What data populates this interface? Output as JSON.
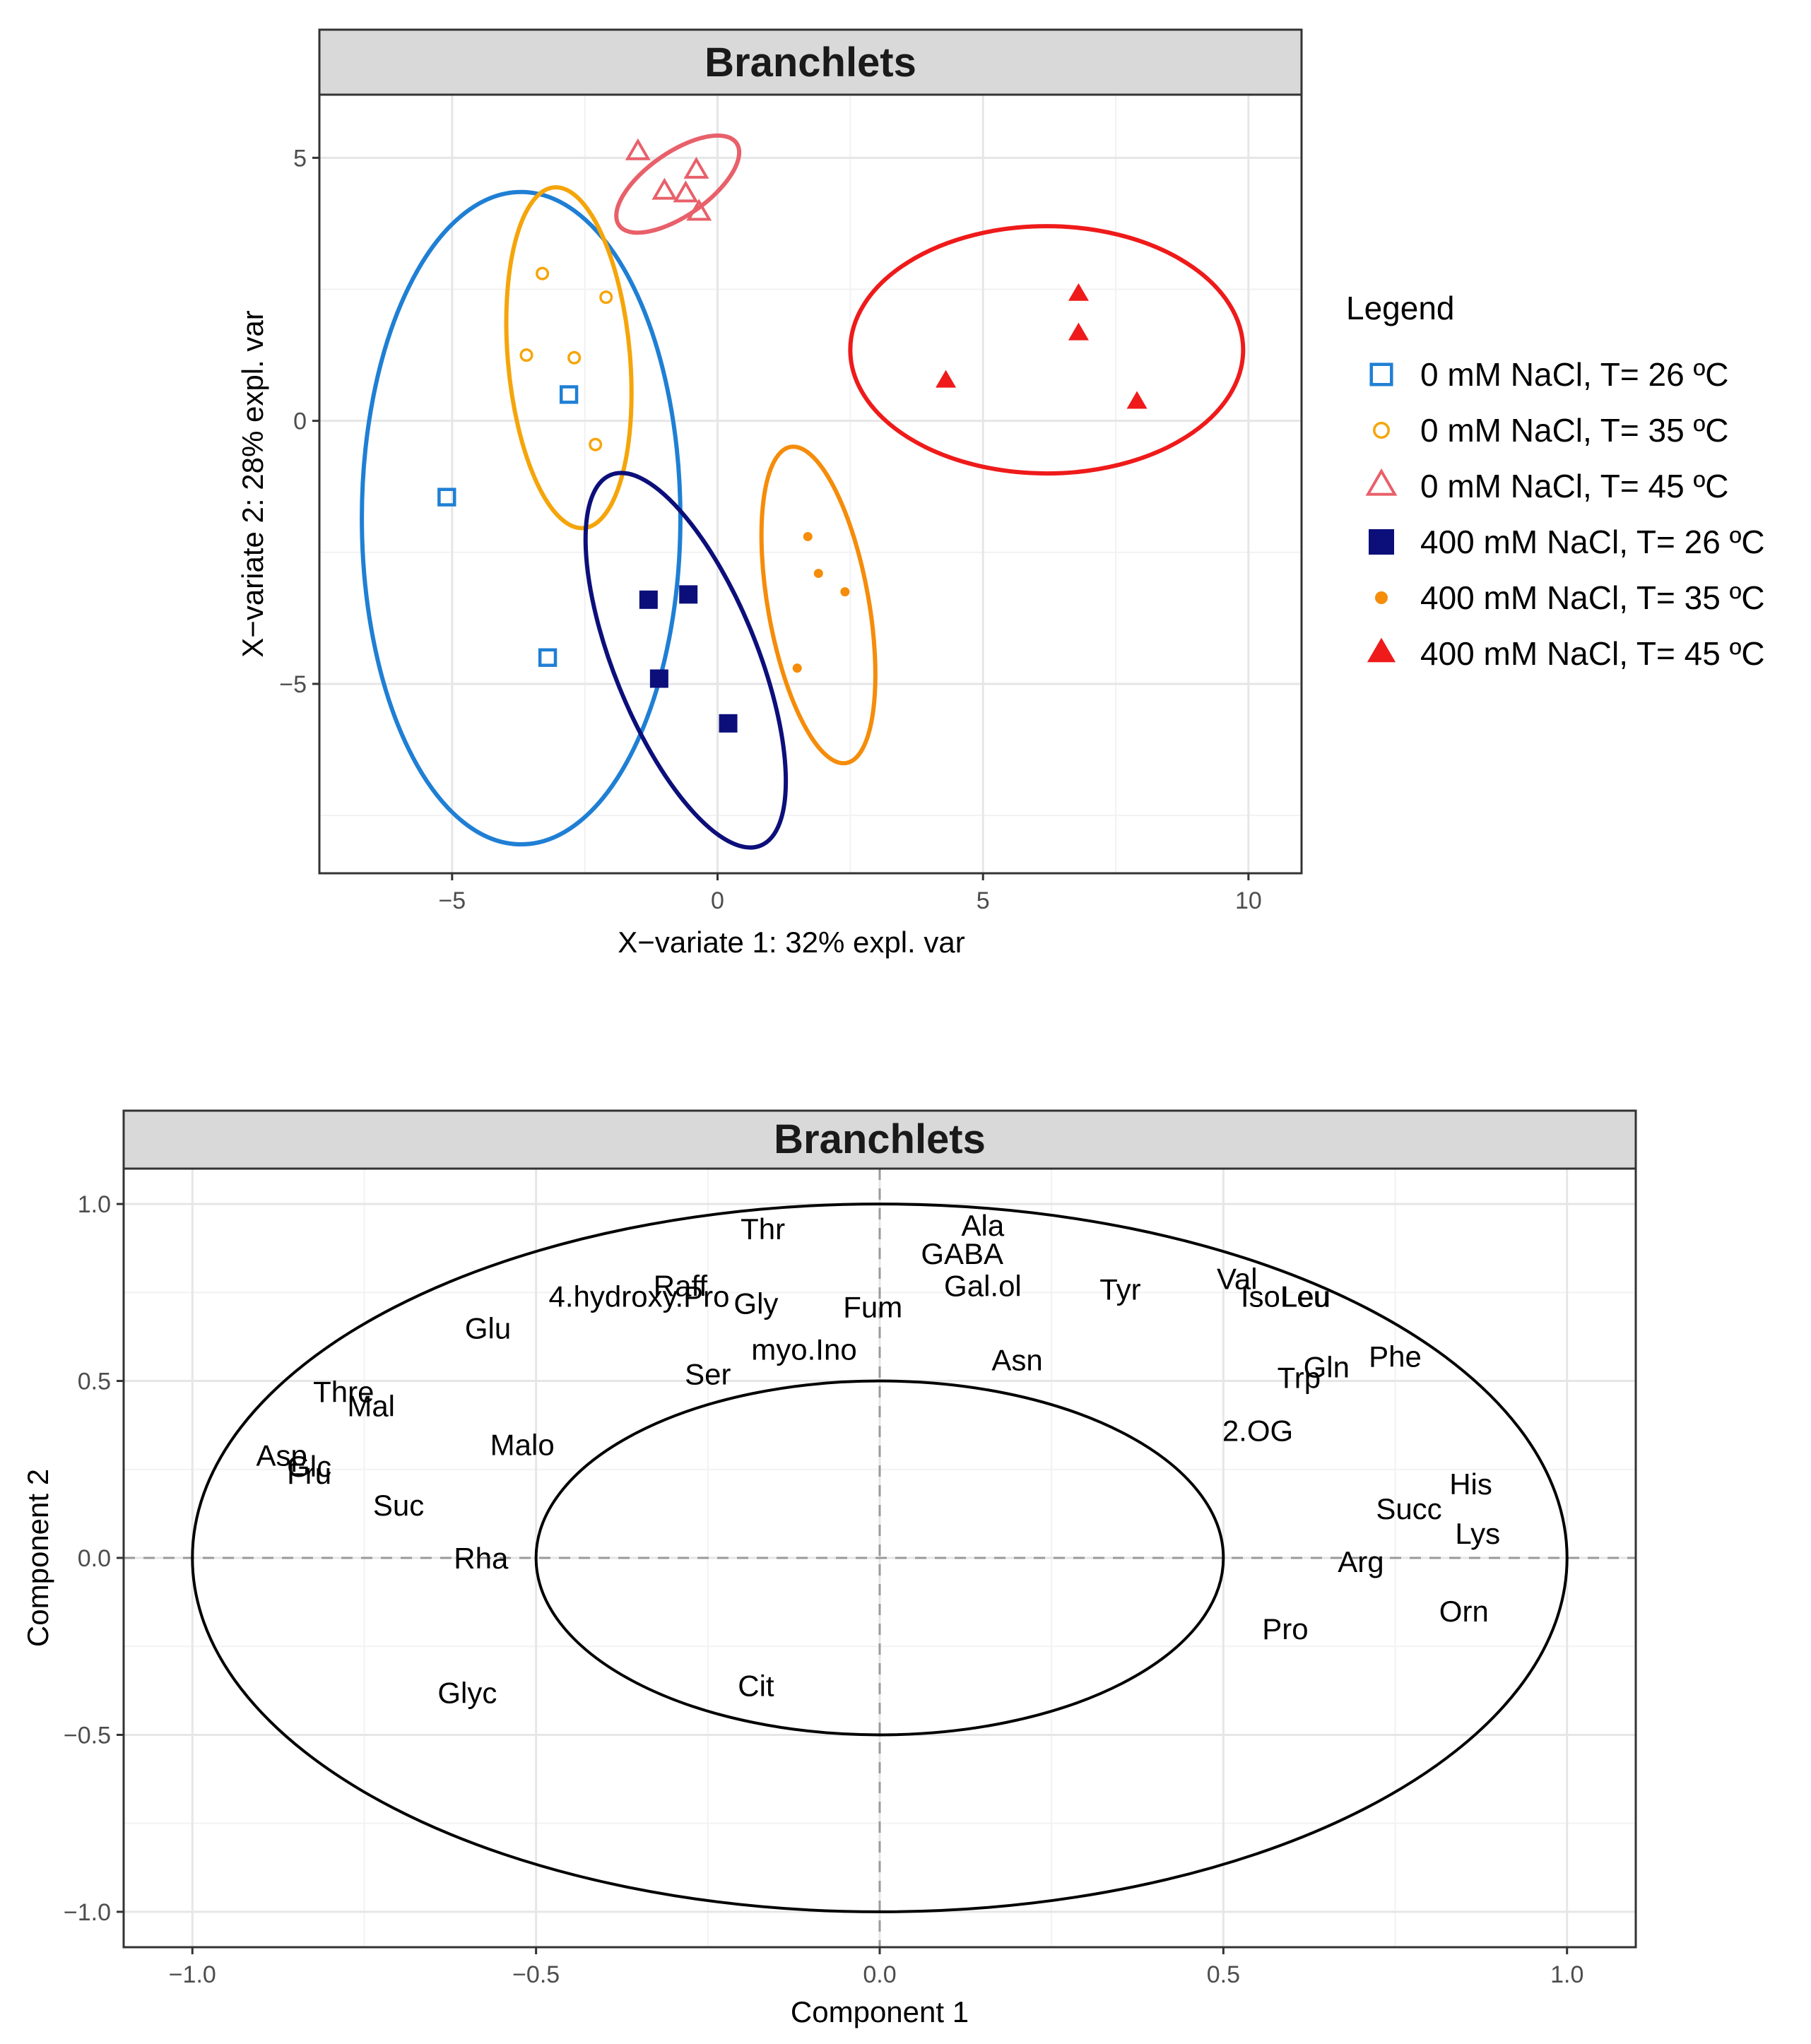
{
  "chart_data": [
    {
      "type": "scatter",
      "title": "Branchlets",
      "xlabel": "X−variate 1: 32% expl. var",
      "ylabel": "X−variate 2: 28% expl. var",
      "xlim": [
        -7.5,
        11
      ],
      "ylim": [
        -8.6,
        6.2
      ],
      "xticks": [
        -5,
        0,
        5,
        10
      ],
      "xtick_labels": [
        "−5",
        "0",
        "5",
        "10"
      ],
      "yticks": [
        5,
        0,
        -5
      ],
      "ytick_labels": [
        "5",
        "0",
        "−5"
      ],
      "grid": true,
      "legend_position": "right",
      "legend": {
        "title": "Legend",
        "items": [
          "0 mM NaCl, T= 26 ºC",
          "0 mM NaCl, T= 35 ºC",
          "0 mM NaCl, T= 45 ºC",
          "400 mM NaCl, T= 26 ºC",
          "400 mM NaCl, T= 35 ºC",
          "400 mM NaCl, T= 45 ºC"
        ]
      },
      "series": [
        {
          "name": "0 mM NaCl, T= 26 ºC",
          "marker": "square-open",
          "color": "#1f7fd4",
          "points": [
            [
              -2.8,
              0.5
            ],
            [
              -5.1,
              -1.45
            ],
            [
              -3.2,
              -4.5
            ]
          ],
          "ellipse": {
            "center": [
              -3.7,
              -1.85
            ],
            "rx": 3.0,
            "ry": 6.2,
            "angle_deg": 0
          }
        },
        {
          "name": "0 mM NaCl, T= 35 ºC",
          "marker": "circle-open",
          "color": "#f5a50a",
          "points": [
            [
              -3.3,
              2.8
            ],
            [
              -2.1,
              2.35
            ],
            [
              -3.6,
              1.25
            ],
            [
              -2.7,
              1.2
            ],
            [
              -2.3,
              -0.45
            ]
          ],
          "ellipse": {
            "center": [
              -2.8,
              1.2
            ],
            "rx": 1.15,
            "ry": 3.25,
            "angle_deg": -5
          }
        },
        {
          "name": "0 mM NaCl, T= 45 ºC",
          "marker": "triangle-open",
          "color": "#e8606a",
          "points": [
            [
              -1.5,
              5.1
            ],
            [
              -1.0,
              4.35
            ],
            [
              -0.6,
              4.3
            ],
            [
              -0.4,
              4.75
            ],
            [
              -0.35,
              3.95
            ]
          ],
          "ellipse": {
            "center": [
              -0.75,
              4.5
            ],
            "rx": 1.35,
            "ry": 0.6,
            "angle_deg": -35
          }
        },
        {
          "name": "400 mM NaCl, T= 26 ºC",
          "marker": "square-filled",
          "color": "#0c0f7a",
          "points": [
            [
              -1.3,
              -3.4
            ],
            [
              -0.55,
              -3.3
            ],
            [
              -1.1,
              -4.9
            ],
            [
              0.2,
              -5.75
            ]
          ],
          "ellipse": {
            "center": [
              -0.6,
              -4.55
            ],
            "rx": 1.35,
            "ry": 3.8,
            "angle_deg": -22
          }
        },
        {
          "name": "400 mM NaCl, T= 35 ºC",
          "marker": "circle-filled",
          "color": "#f58c0a",
          "points": [
            [
              1.7,
              -2.2
            ],
            [
              1.9,
              -2.9
            ],
            [
              2.4,
              -3.25
            ],
            [
              1.5,
              -4.7
            ]
          ],
          "ellipse": {
            "center": [
              1.9,
              -3.5
            ],
            "rx": 0.95,
            "ry": 3.05,
            "angle_deg": -10
          }
        },
        {
          "name": "400 mM NaCl, T= 45 ºC",
          "marker": "triangle-filled",
          "color": "#ef1a1a",
          "points": [
            [
              6.8,
              2.4
            ],
            [
              6.8,
              1.65
            ],
            [
              4.3,
              0.75
            ],
            [
              7.9,
              0.35
            ]
          ],
          "ellipse": {
            "center": [
              6.2,
              1.35
            ],
            "rx": 3.7,
            "ry": 2.35,
            "angle_deg": 0
          }
        }
      ]
    },
    {
      "type": "scatter",
      "title": "Branchlets",
      "xlabel": "Component  1",
      "ylabel": "Component  2",
      "xlim": [
        -1.1,
        1.1
      ],
      "ylim": [
        -1.1,
        1.1
      ],
      "xticks": [
        -1.0,
        -0.5,
        0.0,
        0.5,
        1.0
      ],
      "xtick_labels": [
        "−1.0",
        "−0.5",
        "0.0",
        "0.5",
        "1.0"
      ],
      "yticks": [
        1.0,
        0.5,
        0.0,
        -0.5,
        -1.0
      ],
      "ytick_labels": [
        "1.0",
        "0.5",
        "0.0",
        "−0.5",
        "−1.0"
      ],
      "grid": true,
      "circles": [
        1.0,
        0.5
      ],
      "variables": [
        {
          "label": "Thr",
          "x": -0.17,
          "y": 0.93
        },
        {
          "label": "Ala",
          "x": 0.15,
          "y": 0.94
        },
        {
          "label": "GABA",
          "x": 0.12,
          "y": 0.86
        },
        {
          "label": "Raff",
          "x": -0.29,
          "y": 0.77
        },
        {
          "label": "4.hydroxy.Pro",
          "x": -0.35,
          "y": 0.74
        },
        {
          "label": "Gly",
          "x": -0.18,
          "y": 0.72
        },
        {
          "label": "Gal.ol",
          "x": 0.15,
          "y": 0.77
        },
        {
          "label": "Fum",
          "x": -0.01,
          "y": 0.71
        },
        {
          "label": "Tyr",
          "x": 0.35,
          "y": 0.76
        },
        {
          "label": "Val",
          "x": 0.52,
          "y": 0.79
        },
        {
          "label": "IsoLeu",
          "x": 0.59,
          "y": 0.74
        },
        {
          "label": "Leu",
          "x": 0.62,
          "y": 0.74
        },
        {
          "label": "Glu",
          "x": -0.57,
          "y": 0.65
        },
        {
          "label": "myo.Ino",
          "x": -0.11,
          "y": 0.59
        },
        {
          "label": "Asn",
          "x": 0.2,
          "y": 0.56
        },
        {
          "label": "Gln",
          "x": 0.65,
          "y": 0.54
        },
        {
          "label": "Trp",
          "x": 0.61,
          "y": 0.51
        },
        {
          "label": "Phe",
          "x": 0.75,
          "y": 0.57
        },
        {
          "label": "Ser",
          "x": -0.25,
          "y": 0.52
        },
        {
          "label": "Thre",
          "x": -0.78,
          "y": 0.47
        },
        {
          "label": "Mal",
          "x": -0.74,
          "y": 0.43
        },
        {
          "label": "2.OG",
          "x": 0.55,
          "y": 0.36
        },
        {
          "label": "Malo",
          "x": -0.52,
          "y": 0.32
        },
        {
          "label": "Asp",
          "x": -0.87,
          "y": 0.29
        },
        {
          "label": "Glc",
          "x": -0.83,
          "y": 0.26
        },
        {
          "label": "Fru",
          "x": -0.83,
          "y": 0.24
        },
        {
          "label": "His",
          "x": 0.86,
          "y": 0.21
        },
        {
          "label": "Suc",
          "x": -0.7,
          "y": 0.15
        },
        {
          "label": "Succ",
          "x": 0.77,
          "y": 0.14
        },
        {
          "label": "Lys",
          "x": 0.87,
          "y": 0.07
        },
        {
          "label": "Rha",
          "x": -0.58,
          "y": 0.0
        },
        {
          "label": "Arg",
          "x": 0.7,
          "y": -0.01
        },
        {
          "label": "Orn",
          "x": 0.85,
          "y": -0.15
        },
        {
          "label": "Pro",
          "x": 0.59,
          "y": -0.2
        },
        {
          "label": "Cit",
          "x": -0.18,
          "y": -0.36
        },
        {
          "label": "Glyc",
          "x": -0.6,
          "y": -0.38
        }
      ]
    }
  ]
}
